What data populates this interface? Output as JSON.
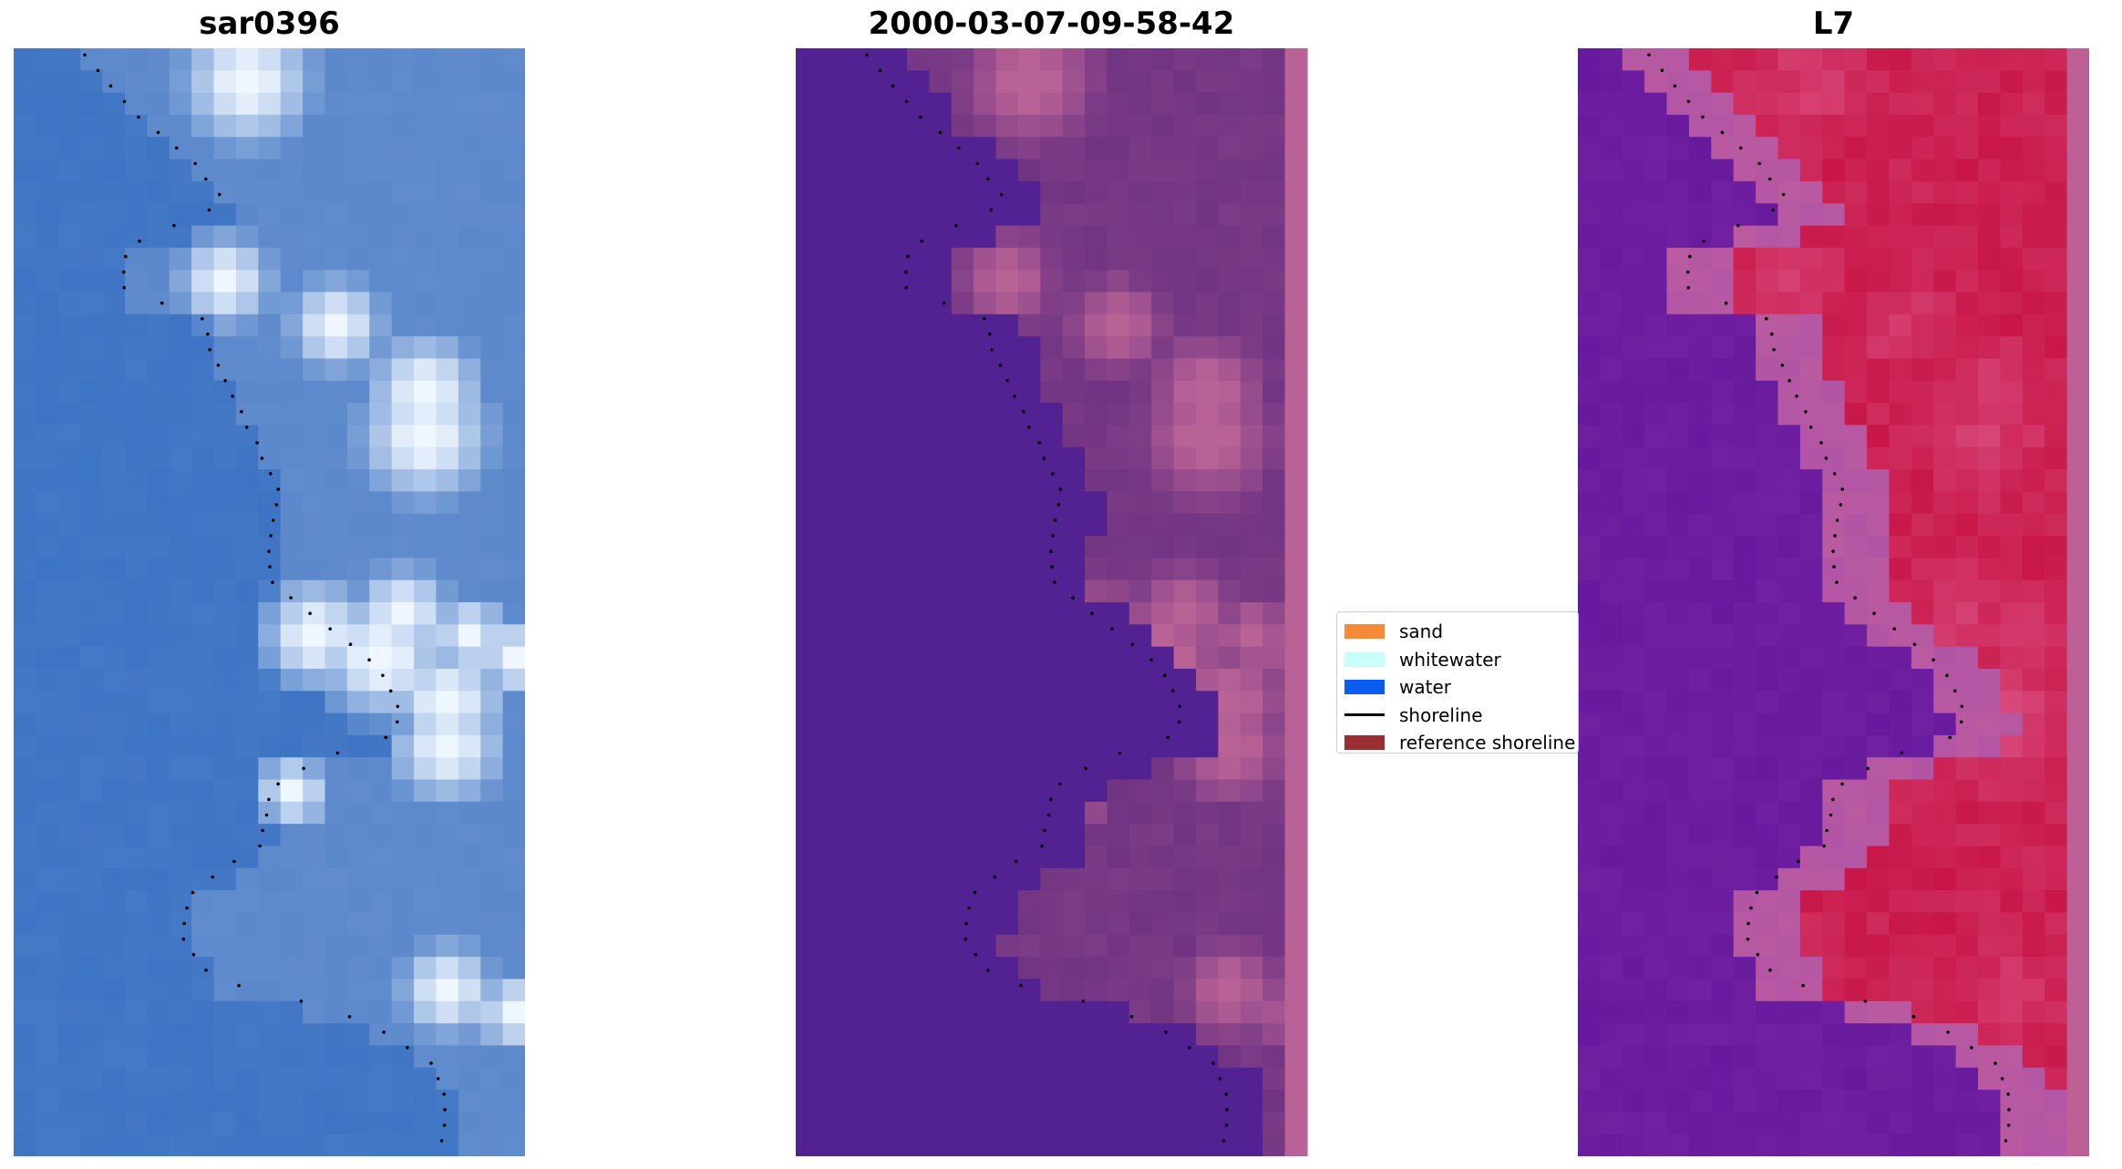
{
  "panels": [
    {
      "title": "sar0396"
    },
    {
      "title": "2000-03-07-09-58-42"
    },
    {
      "title": "L7"
    }
  ],
  "legend": {
    "items": [
      {
        "label": "sand",
        "color": "#f48a3a",
        "kind": "patch"
      },
      {
        "label": "whitewater",
        "color": "#c9fffb",
        "kind": "patch"
      },
      {
        "label": "water",
        "color": "#0a5cf0",
        "kind": "patch"
      },
      {
        "label": "shoreline",
        "color": "#000000",
        "kind": "line"
      },
      {
        "label": "reference shoreline",
        "color": "#9a2f33",
        "kind": "patch"
      }
    ]
  },
  "colors": {
    "rgb_water": "#3f77c6",
    "class_water": "#522293",
    "class_land": "#b96296",
    "mndwi_water": "#6a1c9e",
    "mndwi_land": "#c8184a"
  }
}
